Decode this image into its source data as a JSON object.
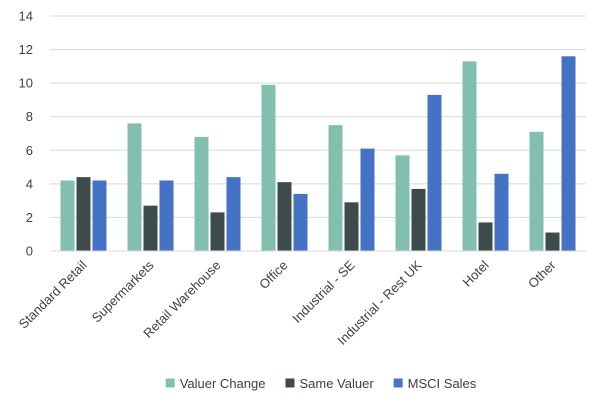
{
  "chart_data": {
    "type": "bar",
    "categories": [
      "Standard Retail",
      "Supermarkets",
      "Retail Warehouse",
      "Office",
      "Industrial - SE",
      "Industrial - Rest UK",
      "Hotel",
      "Other"
    ],
    "series": [
      {
        "name": "Valuer Change",
        "color": "#82BFAE",
        "values": [
          4.2,
          7.6,
          6.8,
          9.9,
          7.5,
          5.7,
          11.3,
          7.1
        ]
      },
      {
        "name": "Same Valuer",
        "color": "#3D4B4B",
        "values": [
          4.4,
          2.7,
          2.3,
          4.1,
          2.9,
          3.7,
          1.7,
          1.1
        ]
      },
      {
        "name": "MSCI Sales",
        "color": "#4472C4",
        "values": [
          4.2,
          4.2,
          4.4,
          3.4,
          6.1,
          9.3,
          4.6,
          11.6
        ]
      }
    ],
    "ylim": [
      0,
      14
    ],
    "yticks": [
      0,
      2,
      4,
      6,
      8,
      10,
      12,
      14
    ],
    "title": "",
    "xlabel": "",
    "ylabel": "",
    "grid": true,
    "legend_position": "bottom"
  }
}
